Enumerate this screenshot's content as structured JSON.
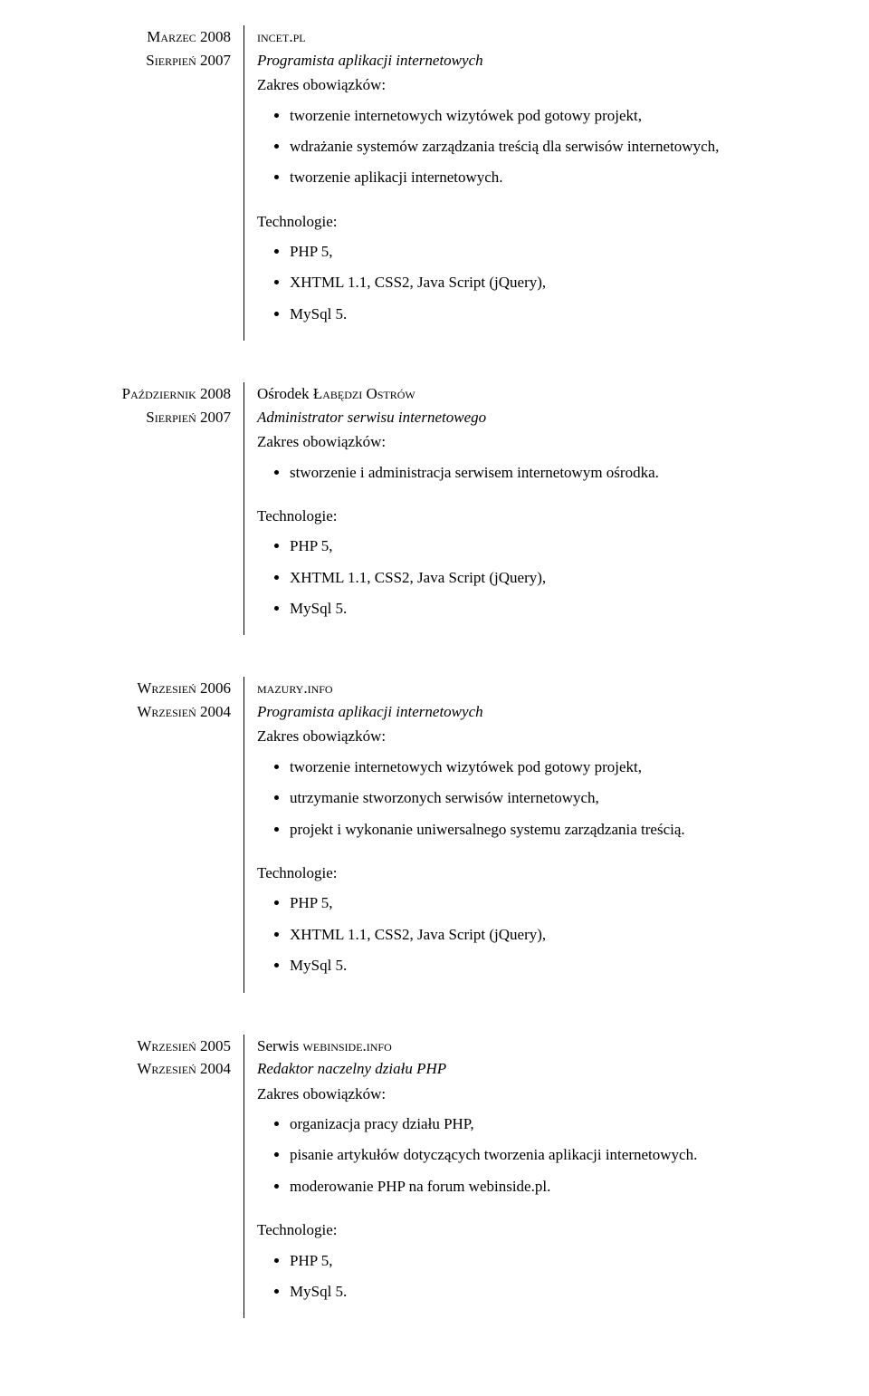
{
  "labels": {
    "scope": "Zakres obowiązków:",
    "tech": "Technologie:"
  },
  "entries": [
    {
      "date_start": "Marzec 2008",
      "date_end": "Sierpień 2007",
      "company_prefix": "",
      "company": "incet.pl",
      "role": "Programista aplikacji internetowych",
      "duties": [
        "tworzenie internetowych wizytówek pod gotowy projekt,",
        "wdrażanie systemów zarządzania treścią dla serwisów internetowych,",
        "tworzenie aplikacji internetowych."
      ],
      "tech": [
        "PHP 5,",
        "XHTML 1.1, CSS2, Java Script (jQuery),",
        "MySql 5."
      ]
    },
    {
      "date_start": "Październik 2008",
      "date_end": "Sierpień 2007",
      "company_prefix": "Ośrodek ",
      "company": "Łabędzi Ostrów",
      "role": "Administrator serwisu internetowego",
      "duties": [
        "stworzenie i administracja serwisem internetowym ośrodka."
      ],
      "tech": [
        "PHP 5,",
        "XHTML 1.1, CSS2, Java Script (jQuery),",
        "MySql 5."
      ]
    },
    {
      "date_start": "Wrzesień 2006",
      "date_end": "Wrzesień 2004",
      "company_prefix": "",
      "company": "mazury.info",
      "role": "Programista aplikacji internetowych",
      "duties": [
        "tworzenie internetowych wizytówek pod gotowy projekt,",
        "utrzymanie stworzonych serwisów internetowych,",
        "projekt i wykonanie uniwersalnego systemu zarządzania treścią."
      ],
      "tech": [
        "PHP 5,",
        "XHTML 1.1, CSS2, Java Script (jQuery),",
        "MySql 5."
      ]
    },
    {
      "date_start": "Wrzesień 2005",
      "date_end": "Wrzesień 2004",
      "company_prefix": "Serwis ",
      "company": "webinside.info",
      "role": "Redaktor naczelny działu PHP",
      "duties": [
        "organizacja pracy działu PHP,",
        "pisanie artykułów dotyczących tworzenia aplikacji internetowych.",
        "moderowanie PHP na forum webinside.pl."
      ],
      "tech": [
        "PHP 5,",
        "MySql 5."
      ]
    }
  ]
}
